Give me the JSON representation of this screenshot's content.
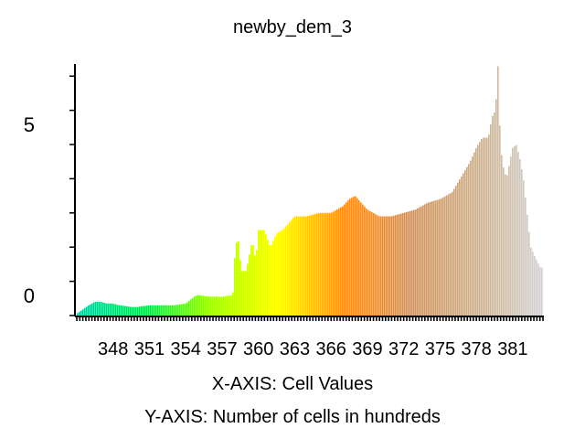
{
  "chart_data": {
    "type": "bar",
    "title": "newby_dem_3",
    "xlabel": "X-AXIS: Cell Values",
    "ylabel": "Y-AXIS: Number of cells in hundreds",
    "x_range": [
      345,
      383.5
    ],
    "ylim": [
      0,
      7.3
    ],
    "y_ticks": [
      0,
      5
    ],
    "y_tick_labels": [
      "0",
      "5"
    ],
    "x_ticks": [
      348,
      351,
      354,
      357,
      360,
      363,
      366,
      369,
      372,
      375,
      378,
      381
    ],
    "x_tick_labels": [
      "348",
      "351",
      "354",
      "357",
      "360",
      "363",
      "366",
      "369",
      "372",
      "375",
      "378",
      "381"
    ],
    "grid": false,
    "legend": "none",
    "color_ramp": [
      "#00c8a0",
      "#00e050",
      "#a0ff00",
      "#ffff00",
      "#ff8c10",
      "#c89060",
      "#c8b090",
      "#d2d2d2"
    ],
    "anchor_x": [
      345.0,
      345.6,
      346.0,
      346.5,
      347.0,
      347.5,
      348.0,
      348.5,
      349.0,
      349.5,
      350.0,
      351.0,
      352.0,
      353.0,
      354.0,
      354.7,
      355.0,
      356.0,
      357.0,
      357.9,
      358.0,
      358.3,
      358.6,
      359.0,
      359.5,
      359.8,
      360.0,
      360.5,
      361.0,
      361.5,
      362.0,
      362.5,
      363.0,
      364.0,
      365.0,
      366.0,
      366.5,
      367.0,
      367.5,
      368.0,
      368.5,
      369.0,
      369.5,
      370.0,
      370.5,
      371.0,
      372.0,
      373.0,
      373.5,
      374.0,
      375.0,
      375.5,
      376.0,
      376.5,
      377.0,
      377.5,
      378.0,
      378.5,
      379.0,
      379.3,
      379.6,
      379.8,
      380.0,
      380.2,
      380.5,
      381.0,
      381.3,
      381.6,
      381.9,
      382.2,
      382.5,
      383.0,
      383.3
    ],
    "anchor_y": [
      0.05,
      0.2,
      0.3,
      0.4,
      0.4,
      0.35,
      0.35,
      0.3,
      0.28,
      0.25,
      0.25,
      0.3,
      0.3,
      0.3,
      0.35,
      0.55,
      0.6,
      0.55,
      0.55,
      0.6,
      1.5,
      2.4,
      1.3,
      1.3,
      2.2,
      1.6,
      2.5,
      2.5,
      2.0,
      2.4,
      2.5,
      2.7,
      2.9,
      2.9,
      3.0,
      3.0,
      3.1,
      3.2,
      3.4,
      3.5,
      3.3,
      3.1,
      3.0,
      2.9,
      2.9,
      2.9,
      3.0,
      3.1,
      3.2,
      3.3,
      3.4,
      3.5,
      3.6,
      3.9,
      4.2,
      4.5,
      4.9,
      5.2,
      5.2,
      5.8,
      6.0,
      7.3,
      5.0,
      4.4,
      4.0,
      4.9,
      5.0,
      4.6,
      4.0,
      3.0,
      2.0,
      1.6,
      1.4
    ]
  }
}
